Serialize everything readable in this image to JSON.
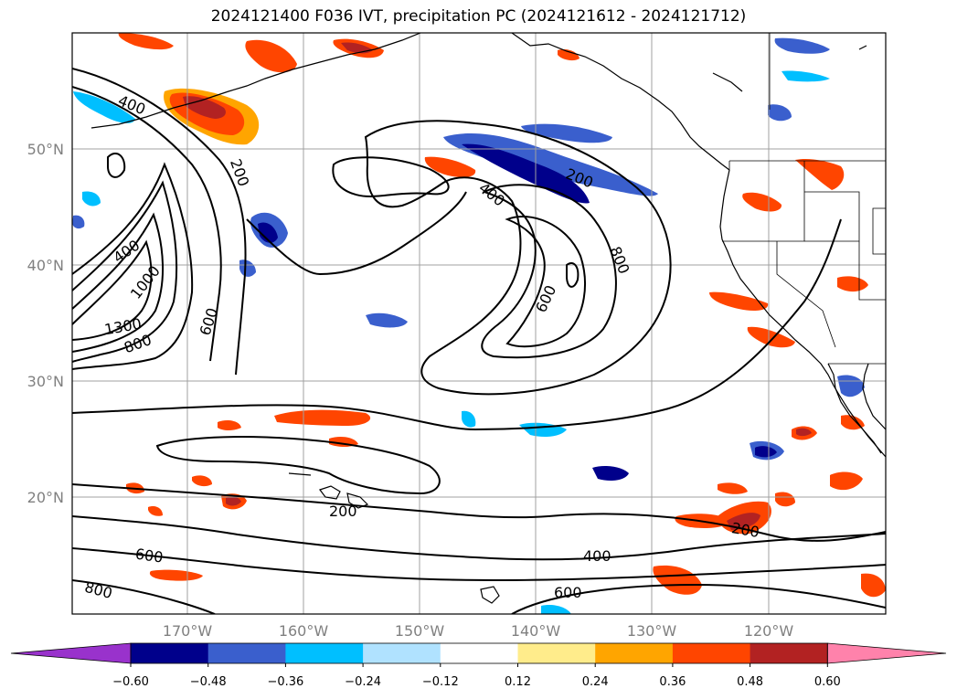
{
  "title": "2024121400 F036 IVT, precipitation PC (2024121612 - 2024121712)",
  "map": {
    "lat_labels": [
      "50°N",
      "40°N",
      "30°N",
      "20°N"
    ],
    "lon_labels": [
      "170°W",
      "160°W",
      "150°W",
      "140°W",
      "130°W",
      "120°W"
    ],
    "grid": true,
    "contour_labels": [
      "400",
      "200",
      "400",
      "1000",
      "1300",
      "800",
      "600",
      "400",
      "200",
      "600",
      "800",
      "200",
      "600",
      "800",
      "400",
      "600",
      "200"
    ]
  },
  "colorbar": {
    "tick_labels": [
      "−0.60",
      "−0.48",
      "−0.36",
      "−0.24",
      "−0.12",
      "0.12",
      "0.24",
      "0.36",
      "0.48",
      "0.60"
    ],
    "colors": [
      "#9932cc",
      "#00008b",
      "#3a5fcd",
      "#00bfff",
      "#b0e2ff",
      "#ffffff",
      "#ffec8b",
      "#ffa500",
      "#ff4500",
      "#b22222",
      "#ff82ab"
    ]
  }
}
